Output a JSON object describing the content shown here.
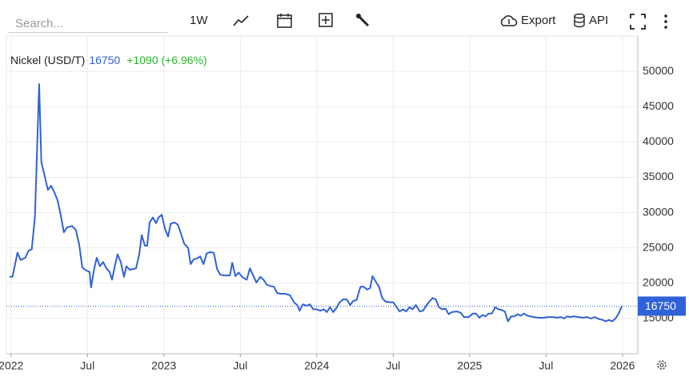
{
  "toolbar": {
    "search_placeholder": "Search...",
    "range": "1W",
    "export": "Export",
    "api": "API"
  },
  "chart_data": {
    "type": "line",
    "name": "Nickel (USD/T)",
    "last_price": 16750,
    "change": "+1090 (+6.96%)",
    "xlim": [
      2021.97,
      2026.1
    ],
    "xticks": [
      {
        "value": 2022,
        "label": "2022"
      },
      {
        "value": 2022.5,
        "label": "Jul"
      },
      {
        "value": 2023,
        "label": "2023"
      },
      {
        "value": 2023.5,
        "label": "Jul"
      },
      {
        "value": 2024,
        "label": "2024"
      },
      {
        "value": 2024.5,
        "label": "Jul"
      },
      {
        "value": 2025,
        "label": "2025"
      },
      {
        "value": 2025.5,
        "label": "Jul"
      },
      {
        "value": 2026,
        "label": "2026"
      }
    ],
    "ylim": [
      10000,
      55000
    ],
    "yticks": [
      15000,
      20000,
      25000,
      30000,
      35000,
      40000,
      45000,
      50000
    ],
    "grid": true,
    "series": [
      {
        "name": "Nickel (USD/T)",
        "color": "#2f62d8",
        "x": [
          2021.99,
          2022.01,
          2022.042,
          2022.063,
          2022.094,
          2022.115,
          2022.136,
          2022.157,
          2022.184,
          2022.199,
          2022.22,
          2022.241,
          2022.262,
          2022.283,
          2022.304,
          2022.325,
          2022.346,
          2022.367,
          2022.399,
          2022.425,
          2022.446,
          2022.467,
          2022.493,
          2022.514,
          2022.524,
          2022.545,
          2022.561,
          2022.582,
          2022.603,
          2022.624,
          2022.645,
          2022.661,
          2022.682,
          2022.697,
          2022.718,
          2022.739,
          2022.755,
          2022.776,
          2022.797,
          2022.818,
          2022.839,
          2022.855,
          2022.876,
          2022.891,
          2022.907,
          2022.928,
          2022.949,
          2022.965,
          2022.986,
          2023.007,
          2023.028,
          2023.044,
          2023.07,
          2023.091,
          2023.112,
          2023.133,
          2023.159,
          2023.175,
          2023.196,
          2023.217,
          2023.238,
          2023.259,
          2023.28,
          2023.301,
          2023.327,
          2023.348,
          2023.369,
          2023.395,
          2023.432,
          2023.447,
          2023.468,
          2023.489,
          2023.516,
          2023.542,
          2023.563,
          2023.584,
          2023.605,
          2023.631,
          2023.652,
          2023.673,
          2023.694,
          2023.72,
          2023.741,
          2023.762,
          2023.793,
          2023.825,
          2023.851,
          2023.872,
          2023.888,
          2023.909,
          2023.935,
          2023.956,
          2023.977,
          2023.998,
          2024.024,
          2024.045,
          2024.066,
          2024.087,
          2024.108,
          2024.129,
          2024.15,
          2024.171,
          2024.197,
          2024.218,
          2024.239,
          2024.26,
          2024.286,
          2024.307,
          2024.328,
          2024.349,
          2024.365,
          2024.386,
          2024.407,
          2024.428,
          2024.449,
          2024.48,
          2024.501,
          2024.522,
          2024.543,
          2024.564,
          2024.585,
          2024.606,
          2024.627,
          2024.648,
          2024.674,
          2024.695,
          2024.716,
          2024.737,
          2024.758,
          2024.779,
          2024.8,
          2024.821,
          2024.842,
          2024.863,
          2024.884,
          2024.916,
          2024.942,
          2024.963,
          2024.994,
          2025.021,
          2025.042,
          2025.063,
          2025.084,
          2025.104,
          2025.125,
          2025.146,
          2025.167,
          2025.188,
          2025.209,
          2025.23,
          2025.251,
          2025.272,
          2025.293,
          2025.314,
          2025.335,
          2025.356,
          2025.377,
          2025.398,
          2025.419,
          2025.451,
          2025.482,
          2025.513,
          2025.545,
          2025.571,
          2025.597,
          2025.618,
          2025.639,
          2025.66,
          2025.681,
          2025.713,
          2025.744,
          2025.765,
          2025.797,
          2025.818,
          2025.849,
          2025.87,
          2025.891,
          2025.912,
          2025.933,
          2025.954,
          2025.975,
          2025.996
        ],
        "values": [
          20900,
          20900,
          24300,
          23300,
          23600,
          24600,
          24800,
          29500,
          48200,
          37100,
          35200,
          33200,
          33800,
          32900,
          31800,
          29700,
          27200,
          27900,
          28100,
          27500,
          25500,
          22200,
          21800,
          21600,
          19400,
          22100,
          23600,
          22400,
          23000,
          22100,
          21600,
          20500,
          22700,
          24100,
          23000,
          20900,
          22400,
          21900,
          22000,
          22100,
          24100,
          26800,
          25300,
          25300,
          28600,
          29300,
          28500,
          29300,
          29700,
          27700,
          26600,
          28400,
          28600,
          28300,
          27000,
          25600,
          25000,
          22700,
          23400,
          23500,
          23800,
          22700,
          24200,
          24400,
          24300,
          22000,
          21200,
          21100,
          21100,
          22900,
          21000,
          21500,
          20800,
          20500,
          22100,
          21100,
          20100,
          20900,
          20500,
          19800,
          19600,
          19500,
          18600,
          18500,
          18500,
          18300,
          17300,
          16900,
          16100,
          17000,
          16800,
          17000,
          16300,
          16300,
          16100,
          16300,
          15900,
          16600,
          15900,
          16500,
          17300,
          17700,
          17700,
          16900,
          17500,
          17600,
          19500,
          19500,
          19100,
          19300,
          21000,
          20200,
          19500,
          17900,
          17400,
          17300,
          17300,
          16600,
          16000,
          16300,
          16000,
          16600,
          16300,
          16900,
          16000,
          16100,
          16800,
          17400,
          17900,
          17700,
          16600,
          16300,
          16400,
          15600,
          15900,
          16000,
          15800,
          15200,
          15200,
          15700,
          15700,
          15100,
          15500,
          15300,
          15700,
          15700,
          16600,
          16300,
          16200,
          16000,
          14600,
          15300,
          15300,
          15600,
          15400,
          15700,
          15400,
          15300,
          15200,
          15100,
          15100,
          15200,
          15200,
          15100,
          15200,
          15000,
          15300,
          15200,
          15300,
          15200,
          15100,
          15200,
          15000,
          15200,
          14900,
          14800,
          14600,
          14800,
          14600,
          15000,
          15700,
          16750
        ]
      }
    ]
  }
}
